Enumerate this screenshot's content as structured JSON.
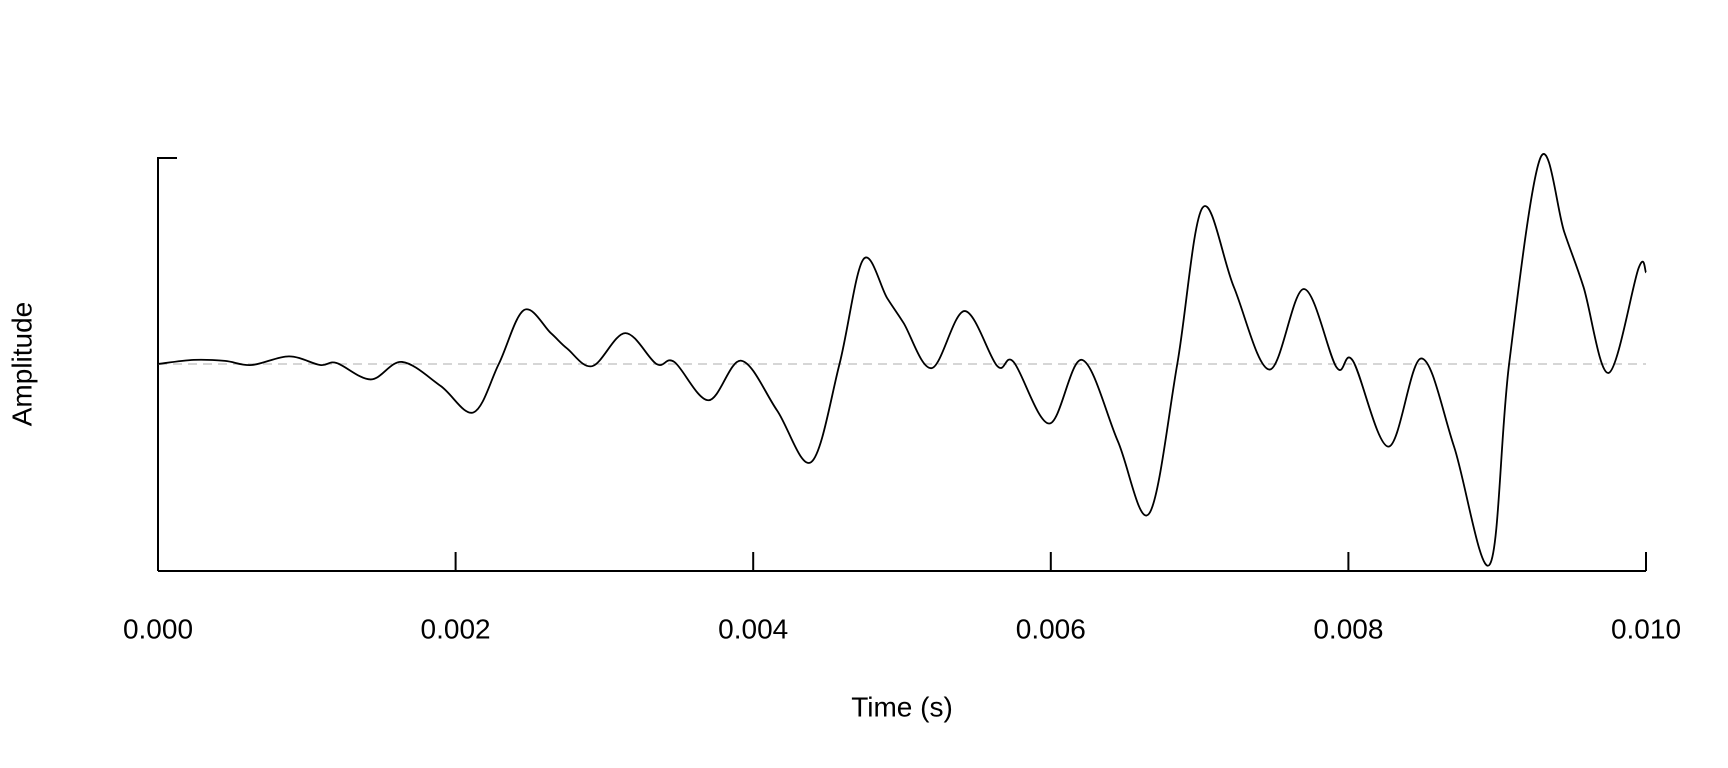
{
  "chart_data": {
    "type": "line",
    "xlabel": "Time (s)",
    "ylabel": "Amplitude",
    "xlim": [
      0,
      0.01
    ],
    "ylim": [
      -1,
      1
    ],
    "xticks": [
      {
        "value": 0,
        "label": "0.000"
      },
      0.002,
      0.004,
      0.006,
      0.008,
      {
        "value": 0.01,
        "label": "0.010"
      }
    ],
    "zero_line": true,
    "color": "#000000",
    "x": [
      0,
      0.00024,
      0.00045,
      0.00063,
      0.00088,
      0.00109,
      0.0012,
      0.00143,
      0.00164,
      0.0019,
      0.00212,
      0.00229,
      0.00246,
      0.00264,
      0.00275,
      0.00292,
      0.00314,
      0.00335,
      0.00347,
      0.0037,
      0.00392,
      0.00416,
      0.00439,
      0.00458,
      0.00474,
      0.0049,
      0.00501,
      0.0052,
      0.00542,
      0.00564,
      0.00575,
      0.00599,
      0.00621,
      0.00645,
      0.00666,
      0.00685,
      0.00702,
      0.00723,
      0.00747,
      0.0077,
      0.00792,
      0.00803,
      0.00827,
      0.00849,
      0.00871,
      0.00895,
      0.00908,
      0.00929,
      0.00945,
      0.00958,
      0.00975,
      0.00995,
      0.01
    ],
    "values": [
      0,
      0.02,
      0.015,
      -0.005,
      0.037,
      -0.005,
      0.005,
      -0.075,
      0.01,
      -0.107,
      -0.235,
      0,
      0.262,
      0.15,
      0.075,
      -0.01,
      0.15,
      0,
      0.01,
      -0.176,
      0.016,
      -0.225,
      -0.476,
      0,
      0.508,
      0.32,
      0.2,
      -0.02,
      0.257,
      -0.01,
      0.01,
      -0.289,
      0.02,
      -0.374,
      -0.727,
      0,
      0.759,
      0.374,
      -0.027,
      0.364,
      -0.016,
      0.016,
      -0.401,
      0.027,
      -0.401,
      -0.973,
      0,
      1.0,
      0.642,
      0.374,
      -0.043,
      0.465,
      0.444
    ]
  }
}
